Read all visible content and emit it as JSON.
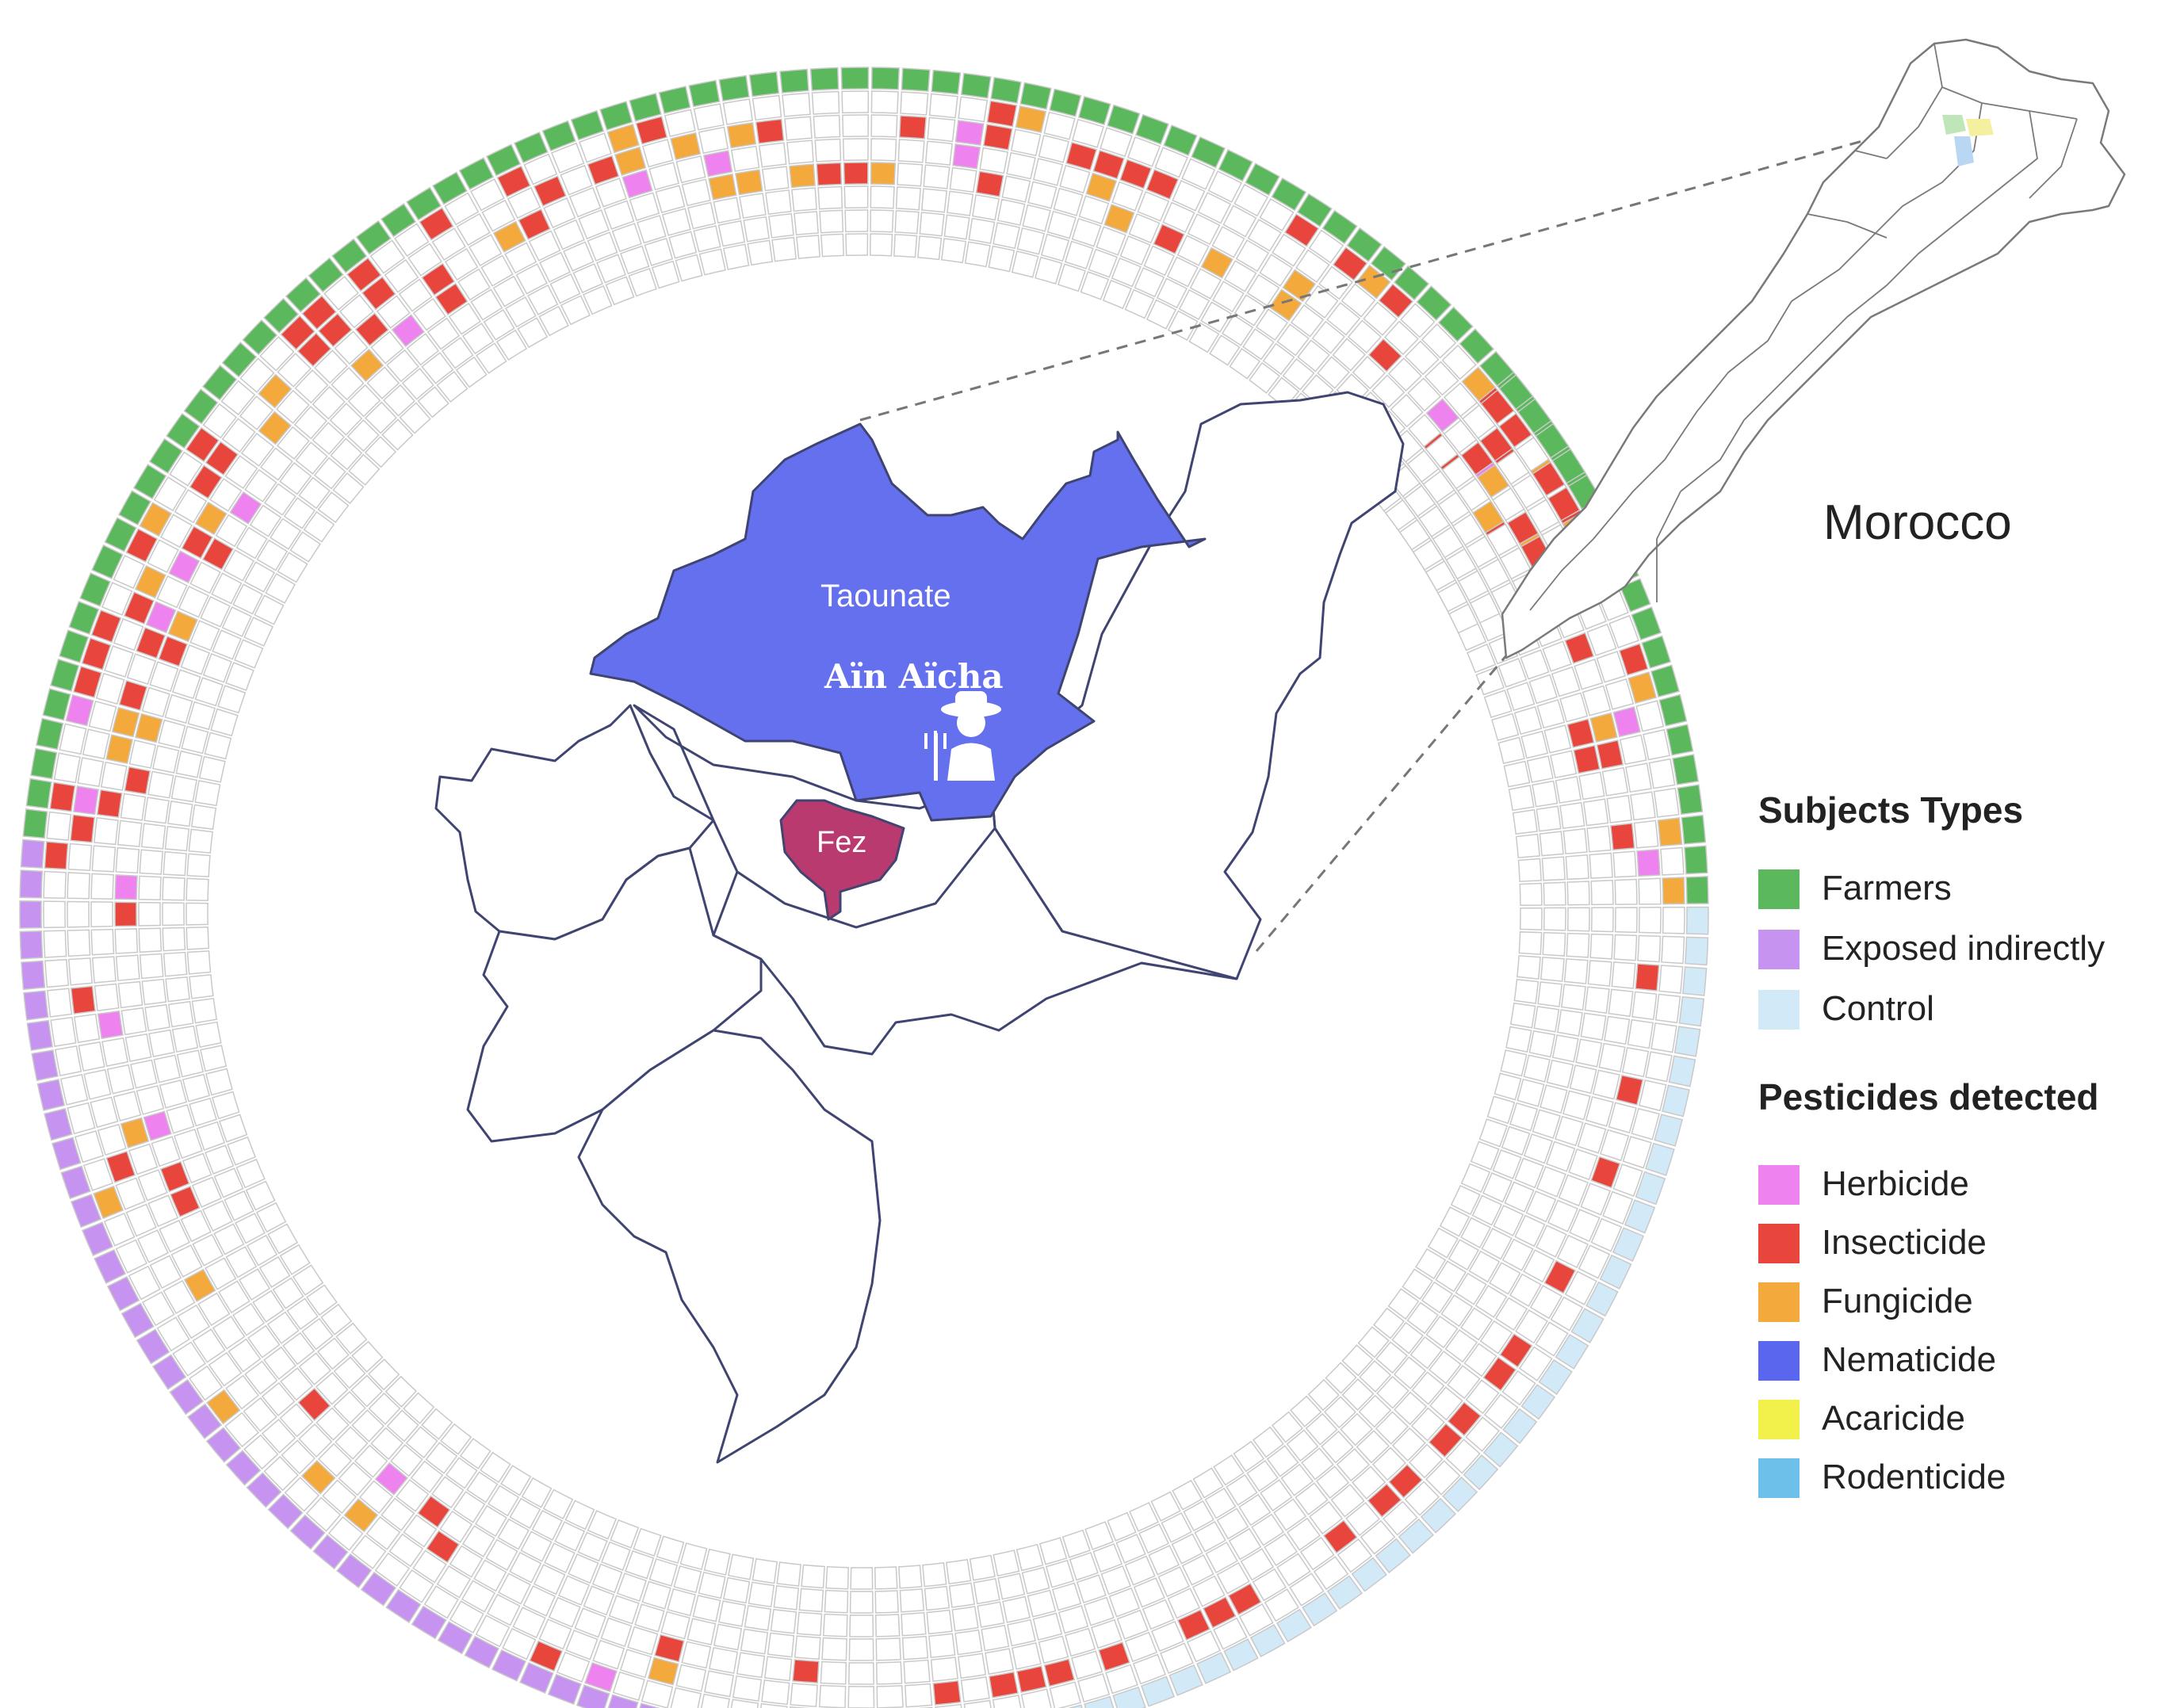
{
  "map": {
    "country_label": "Morocco",
    "region_label": "Taounate",
    "commune_label": "Aïn Aïcha",
    "city_label": "Fez",
    "icons": [
      "farmer-icon"
    ]
  },
  "legend": {
    "subjects_title": "Subjects Types",
    "subjects": [
      {
        "label": "Farmers",
        "color": "#5cb85c"
      },
      {
        "label": "Exposed indirectly",
        "color": "#c694f0"
      },
      {
        "label": "Control",
        "color": "#d2e9f8"
      }
    ],
    "pesticides_title": "Pesticides detected",
    "pesticides": [
      {
        "label": "Herbicide",
        "color": "#ee82ee"
      },
      {
        "label": "Insecticide",
        "color": "#e8453c"
      },
      {
        "label": "Fungicide",
        "color": "#f3a93b"
      },
      {
        "label": "Nematicide",
        "color": "#5a66ee"
      },
      {
        "label": "Acaricide",
        "color": "#f2f04a"
      },
      {
        "label": "Rodenticide",
        "color": "#6cc0ea"
      }
    ]
  },
  "colors": {
    "region_fill": "#6470ee",
    "city_fill": "#b83a6e",
    "outline": "#3f4470",
    "cell_border": "#c9c9c9"
  }
}
